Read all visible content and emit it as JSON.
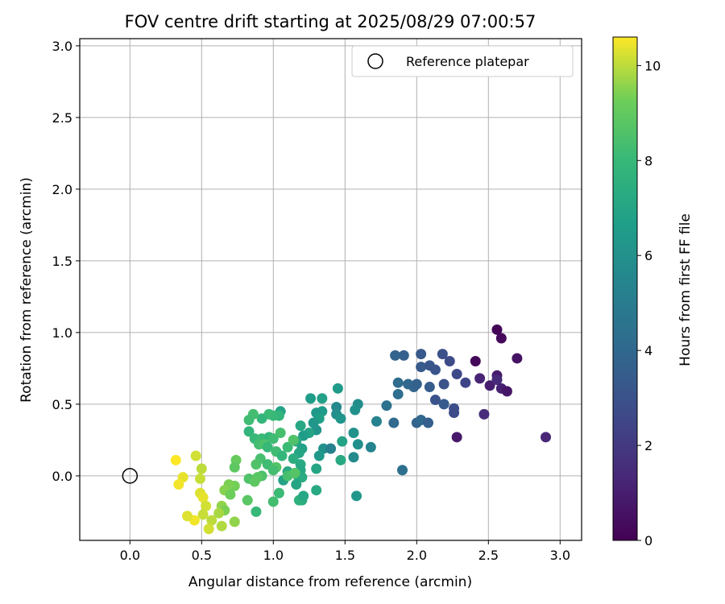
{
  "chart_data": {
    "type": "scatter",
    "title": "FOV centre drift starting at 2025/08/29 07:00:57",
    "xlabel": "Angular distance from reference (arcmin)",
    "ylabel": "Rotation from reference (arcmin)",
    "xlim": [
      -0.35,
      3.15
    ],
    "ylim": [
      -0.45,
      3.05
    ],
    "x_ticks": [
      0.0,
      0.5,
      1.0,
      1.5,
      2.0,
      2.5,
      3.0
    ],
    "x_tick_labels": [
      "0.0",
      "0.5",
      "1.0",
      "1.5",
      "2.0",
      "2.5",
      "3.0"
    ],
    "y_ticks": [
      0.0,
      0.5,
      1.0,
      1.5,
      2.0,
      2.5,
      3.0
    ],
    "y_tick_labels": [
      "0.0",
      "0.5",
      "1.0",
      "1.5",
      "2.0",
      "2.5",
      "3.0"
    ],
    "grid": true,
    "legend": {
      "position": "upper-right",
      "entries": [
        "Reference platepar"
      ]
    },
    "reference_point": {
      "name": "Reference platepar",
      "x": 0.0,
      "y": 0.0
    },
    "colorbar": {
      "label": "Hours from first FF file",
      "range": [
        0,
        10.6
      ],
      "ticks": [
        0,
        2,
        4,
        6,
        8,
        10
      ],
      "tick_labels": [
        "0",
        "2",
        "4",
        "6",
        "8",
        "10"
      ],
      "colormap": "viridis"
    },
    "points": [
      {
        "x": 2.56,
        "y": 1.02,
        "h": 0.1
      },
      {
        "x": 2.59,
        "y": 0.96,
        "h": 0.3
      },
      {
        "x": 2.41,
        "y": 0.8,
        "h": 0.2
      },
      {
        "x": 2.7,
        "y": 0.82,
        "h": 0.6
      },
      {
        "x": 2.56,
        "y": 0.7,
        "h": 0.9
      },
      {
        "x": 2.44,
        "y": 0.68,
        "h": 1.2
      },
      {
        "x": 2.51,
        "y": 0.63,
        "h": 1.0
      },
      {
        "x": 2.59,
        "y": 0.61,
        "h": 1.1
      },
      {
        "x": 2.63,
        "y": 0.59,
        "h": 0.7
      },
      {
        "x": 2.47,
        "y": 0.43,
        "h": 1.5
      },
      {
        "x": 2.28,
        "y": 0.27,
        "h": 0.8
      },
      {
        "x": 2.9,
        "y": 0.27,
        "h": 1.3
      },
      {
        "x": 2.56,
        "y": 0.67,
        "h": 1.4
      },
      {
        "x": 2.23,
        "y": 0.8,
        "h": 2.7
      },
      {
        "x": 2.18,
        "y": 0.85,
        "h": 2.9
      },
      {
        "x": 2.03,
        "y": 0.85,
        "h": 3.3
      },
      {
        "x": 1.91,
        "y": 0.84,
        "h": 3.6
      },
      {
        "x": 1.85,
        "y": 0.84,
        "h": 3.8
      },
      {
        "x": 2.03,
        "y": 0.76,
        "h": 3.4
      },
      {
        "x": 2.09,
        "y": 0.77,
        "h": 3.2
      },
      {
        "x": 2.13,
        "y": 0.74,
        "h": 3.1
      },
      {
        "x": 2.28,
        "y": 0.71,
        "h": 2.6
      },
      {
        "x": 2.34,
        "y": 0.65,
        "h": 2.5
      },
      {
        "x": 2.19,
        "y": 0.64,
        "h": 3.0
      },
      {
        "x": 1.87,
        "y": 0.65,
        "h": 4.2
      },
      {
        "x": 1.94,
        "y": 0.64,
        "h": 4.0
      },
      {
        "x": 1.98,
        "y": 0.62,
        "h": 3.9
      },
      {
        "x": 2.0,
        "y": 0.64,
        "h": 3.7
      },
      {
        "x": 2.09,
        "y": 0.62,
        "h": 3.5
      },
      {
        "x": 2.13,
        "y": 0.53,
        "h": 3.1
      },
      {
        "x": 2.19,
        "y": 0.5,
        "h": 3.4
      },
      {
        "x": 2.26,
        "y": 0.47,
        "h": 2.8
      },
      {
        "x": 2.26,
        "y": 0.44,
        "h": 2.7
      },
      {
        "x": 1.87,
        "y": 0.57,
        "h": 4.3
      },
      {
        "x": 1.79,
        "y": 0.49,
        "h": 4.5
      },
      {
        "x": 1.84,
        "y": 0.37,
        "h": 4.1
      },
      {
        "x": 2.0,
        "y": 0.37,
        "h": 3.8
      },
      {
        "x": 2.03,
        "y": 0.39,
        "h": 4.0
      },
      {
        "x": 2.08,
        "y": 0.37,
        "h": 3.6
      },
      {
        "x": 1.9,
        "y": 0.04,
        "h": 4.4
      },
      {
        "x": 1.72,
        "y": 0.38,
        "h": 5.3
      },
      {
        "x": 1.68,
        "y": 0.2,
        "h": 5.4
      },
      {
        "x": 1.59,
        "y": 0.5,
        "h": 5.8
      },
      {
        "x": 1.57,
        "y": 0.46,
        "h": 6.0
      },
      {
        "x": 1.45,
        "y": 0.61,
        "h": 6.5
      },
      {
        "x": 1.44,
        "y": 0.48,
        "h": 5.6
      },
      {
        "x": 1.44,
        "y": 0.43,
        "h": 5.9
      },
      {
        "x": 1.47,
        "y": 0.4,
        "h": 6.2
      },
      {
        "x": 1.56,
        "y": 0.3,
        "h": 6.1
      },
      {
        "x": 1.59,
        "y": 0.22,
        "h": 5.9
      },
      {
        "x": 1.56,
        "y": 0.13,
        "h": 5.7
      },
      {
        "x": 1.58,
        "y": -0.14,
        "h": 6.3
      },
      {
        "x": 1.34,
        "y": 0.54,
        "h": 6.8
      },
      {
        "x": 1.26,
        "y": 0.54,
        "h": 6.6
      },
      {
        "x": 1.34,
        "y": 0.45,
        "h": 6.5
      },
      {
        "x": 1.3,
        "y": 0.44,
        "h": 6.4
      },
      {
        "x": 1.32,
        "y": 0.4,
        "h": 6.7
      },
      {
        "x": 1.28,
        "y": 0.37,
        "h": 6.3
      },
      {
        "x": 1.3,
        "y": 0.32,
        "h": 6.2
      },
      {
        "x": 1.25,
        "y": 0.3,
        "h": 6.9
      },
      {
        "x": 1.21,
        "y": 0.28,
        "h": 6.6
      },
      {
        "x": 1.35,
        "y": 0.19,
        "h": 6.0
      },
      {
        "x": 1.4,
        "y": 0.19,
        "h": 5.8
      },
      {
        "x": 1.48,
        "y": 0.24,
        "h": 6.9
      },
      {
        "x": 1.32,
        "y": 0.14,
        "h": 6.4
      },
      {
        "x": 1.47,
        "y": 0.11,
        "h": 7.2
      },
      {
        "x": 1.3,
        "y": 0.05,
        "h": 7.0
      },
      {
        "x": 1.3,
        "y": -0.1,
        "h": 7.2
      },
      {
        "x": 1.19,
        "y": 0.35,
        "h": 7.1
      },
      {
        "x": 1.16,
        "y": 0.24,
        "h": 7.3
      },
      {
        "x": 1.2,
        "y": 0.19,
        "h": 6.8
      },
      {
        "x": 1.18,
        "y": 0.16,
        "h": 7.0
      },
      {
        "x": 1.14,
        "y": 0.12,
        "h": 7.4
      },
      {
        "x": 1.19,
        "y": 0.08,
        "h": 7.2
      },
      {
        "x": 1.19,
        "y": 0.04,
        "h": 7.1
      },
      {
        "x": 1.17,
        "y": 0.0,
        "h": 7.5
      },
      {
        "x": 1.2,
        "y": -0.01,
        "h": 7.3
      },
      {
        "x": 1.16,
        "y": -0.06,
        "h": 7.0
      },
      {
        "x": 1.2,
        "y": -0.17,
        "h": 7.4
      },
      {
        "x": 1.18,
        "y": -0.17,
        "h": 7.6
      },
      {
        "x": 1.21,
        "y": -0.14,
        "h": 7.1
      },
      {
        "x": 1.07,
        "y": -0.03,
        "h": 6.9
      },
      {
        "x": 1.1,
        "y": 0.03,
        "h": 7.2
      },
      {
        "x": 1.05,
        "y": 0.45,
        "h": 6.9
      },
      {
        "x": 1.04,
        "y": 0.42,
        "h": 7.8
      },
      {
        "x": 1.0,
        "y": 0.42,
        "h": 8.0
      },
      {
        "x": 0.97,
        "y": 0.43,
        "h": 8.1
      },
      {
        "x": 0.92,
        "y": 0.4,
        "h": 7.9
      },
      {
        "x": 0.86,
        "y": 0.43,
        "h": 8.3
      },
      {
        "x": 0.83,
        "y": 0.39,
        "h": 8.2
      },
      {
        "x": 0.83,
        "y": 0.31,
        "h": 7.8
      },
      {
        "x": 0.87,
        "y": 0.26,
        "h": 8.0
      },
      {
        "x": 0.92,
        "y": 0.26,
        "h": 8.1
      },
      {
        "x": 0.97,
        "y": 0.27,
        "h": 7.9
      },
      {
        "x": 1.0,
        "y": 0.26,
        "h": 8.2
      },
      {
        "x": 1.05,
        "y": 0.3,
        "h": 8.4
      },
      {
        "x": 0.9,
        "y": 0.22,
        "h": 8.3
      },
      {
        "x": 0.94,
        "y": 0.22,
        "h": 8.5
      },
      {
        "x": 0.96,
        "y": 0.2,
        "h": 8.0
      },
      {
        "x": 1.02,
        "y": 0.17,
        "h": 8.2
      },
      {
        "x": 1.06,
        "y": 0.14,
        "h": 7.9
      },
      {
        "x": 1.1,
        "y": 0.2,
        "h": 8.1
      },
      {
        "x": 1.14,
        "y": 0.25,
        "h": 8.6
      },
      {
        "x": 0.91,
        "y": 0.12,
        "h": 8.4
      },
      {
        "x": 0.88,
        "y": 0.08,
        "h": 8.6
      },
      {
        "x": 0.96,
        "y": 0.08,
        "h": 8.2
      },
      {
        "x": 1.02,
        "y": 0.06,
        "h": 8.7
      },
      {
        "x": 1.0,
        "y": 0.04,
        "h": 8.3
      },
      {
        "x": 0.92,
        "y": 0.0,
        "h": 8.5
      },
      {
        "x": 0.89,
        "y": -0.01,
        "h": 8.8
      },
      {
        "x": 0.83,
        "y": -0.02,
        "h": 8.6
      },
      {
        "x": 0.87,
        "y": -0.04,
        "h": 8.9
      },
      {
        "x": 1.1,
        "y": 0.0,
        "h": 8.4
      },
      {
        "x": 1.15,
        "y": 0.02,
        "h": 8.7
      },
      {
        "x": 1.04,
        "y": -0.12,
        "h": 8.1
      },
      {
        "x": 1.0,
        "y": -0.18,
        "h": 8.3
      },
      {
        "x": 0.88,
        "y": -0.25,
        "h": 8.0
      },
      {
        "x": 0.82,
        "y": -0.17,
        "h": 8.8
      },
      {
        "x": 0.74,
        "y": 0.11,
        "h": 9.1
      },
      {
        "x": 0.73,
        "y": 0.06,
        "h": 8.9
      },
      {
        "x": 0.73,
        "y": -0.07,
        "h": 9.3
      },
      {
        "x": 0.69,
        "y": -0.06,
        "h": 9.4
      },
      {
        "x": 0.66,
        "y": -0.1,
        "h": 9.5
      },
      {
        "x": 0.7,
        "y": -0.13,
        "h": 9.2
      },
      {
        "x": 0.64,
        "y": -0.21,
        "h": 9.6
      },
      {
        "x": 0.66,
        "y": -0.24,
        "h": 9.4
      },
      {
        "x": 0.62,
        "y": -0.26,
        "h": 9.8
      },
      {
        "x": 0.64,
        "y": -0.35,
        "h": 9.9
      },
      {
        "x": 0.57,
        "y": -0.31,
        "h": 10.0
      },
      {
        "x": 0.55,
        "y": -0.37,
        "h": 10.2
      },
      {
        "x": 0.73,
        "y": -0.32,
        "h": 9.6
      },
      {
        "x": 0.5,
        "y": 0.05,
        "h": 10.0
      },
      {
        "x": 0.46,
        "y": 0.14,
        "h": 10.2
      },
      {
        "x": 0.49,
        "y": -0.02,
        "h": 10.1
      },
      {
        "x": 0.49,
        "y": -0.12,
        "h": 10.3
      },
      {
        "x": 0.51,
        "y": -0.15,
        "h": 10.4
      },
      {
        "x": 0.53,
        "y": -0.21,
        "h": 10.2
      },
      {
        "x": 0.51,
        "y": -0.27,
        "h": 10.1
      },
      {
        "x": 0.45,
        "y": -0.31,
        "h": 10.5
      },
      {
        "x": 0.4,
        "y": -0.28,
        "h": 10.3
      },
      {
        "x": 0.37,
        "y": -0.01,
        "h": 10.4
      },
      {
        "x": 0.34,
        "y": -0.06,
        "h": 10.5
      },
      {
        "x": 0.32,
        "y": 0.11,
        "h": 10.6
      },
      {
        "x": 1.4,
        "y": 0.19,
        "h": 5.2
      }
    ]
  }
}
